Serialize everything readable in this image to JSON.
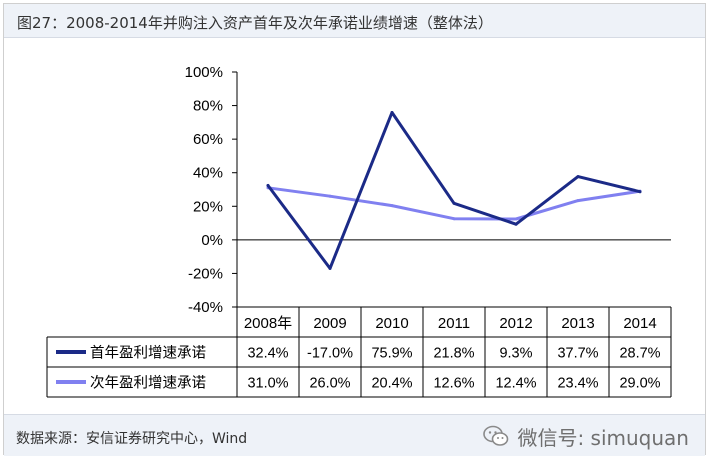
{
  "header": {
    "title": "图27：2008-2014年并购注入资产首年及次年承诺业绩增速（整体法）"
  },
  "footer": {
    "source": "数据来源：安信证券研究中心，Wind",
    "watermark": "微信号: simuquan"
  },
  "chart_data": {
    "type": "line",
    "categories": [
      "2008年",
      "2009",
      "2010",
      "2011",
      "2012",
      "2013",
      "2014"
    ],
    "yticks": [
      "100%",
      "80%",
      "60%",
      "40%",
      "20%",
      "0%",
      "-20%",
      "-40%"
    ],
    "ylim": [
      -40,
      100
    ],
    "grid": false,
    "legend": "data-table",
    "series": [
      {
        "name": "首年盈利增速承诺",
        "color": "#1b2a87",
        "values": [
          32.4,
          -17.0,
          75.9,
          21.8,
          9.3,
          37.7,
          28.7
        ],
        "labels": [
          "32.4%",
          "-17.0%",
          "75.9%",
          "21.8%",
          "9.3%",
          "37.7%",
          "28.7%"
        ]
      },
      {
        "name": "次年盈利增速承诺",
        "color": "#8080f0",
        "values": [
          31.0,
          26.0,
          20.4,
          12.6,
          12.4,
          23.4,
          29.0
        ],
        "labels": [
          "31.0%",
          "26.0%",
          "20.4%",
          "12.6%",
          "12.4%",
          "23.4%",
          "29.0%"
        ]
      }
    ]
  }
}
